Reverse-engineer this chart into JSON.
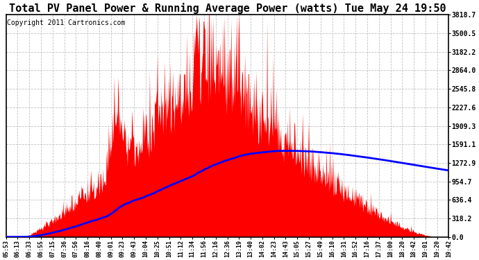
{
  "title": "Total PV Panel Power & Running Average Power (watts) Tue May 24 19:50",
  "copyright": "Copyright 2011 Cartronics.com",
  "y_max": 3818.7,
  "y_ticks": [
    0.0,
    318.2,
    636.4,
    954.7,
    1272.9,
    1591.1,
    1909.3,
    2227.6,
    2545.8,
    2864.0,
    3182.2,
    3500.5,
    3818.7
  ],
  "x_labels": [
    "05:53",
    "06:13",
    "06:33",
    "06:55",
    "07:15",
    "07:36",
    "07:56",
    "08:16",
    "08:40",
    "09:01",
    "09:23",
    "09:43",
    "10:04",
    "10:25",
    "10:51",
    "11:12",
    "11:34",
    "11:56",
    "12:16",
    "12:36",
    "13:19",
    "13:40",
    "14:02",
    "14:23",
    "14:43",
    "15:05",
    "15:27",
    "15:49",
    "16:10",
    "16:31",
    "16:52",
    "17:16",
    "17:37",
    "18:00",
    "18:20",
    "18:42",
    "19:01",
    "19:20",
    "19:42"
  ],
  "background_color": "#ffffff",
  "fill_color": "#ff0000",
  "line_color": "#0000ff",
  "grid_color": "#bbbbbb",
  "title_fontsize": 11,
  "copyright_fontsize": 7,
  "title_font": "monospace"
}
